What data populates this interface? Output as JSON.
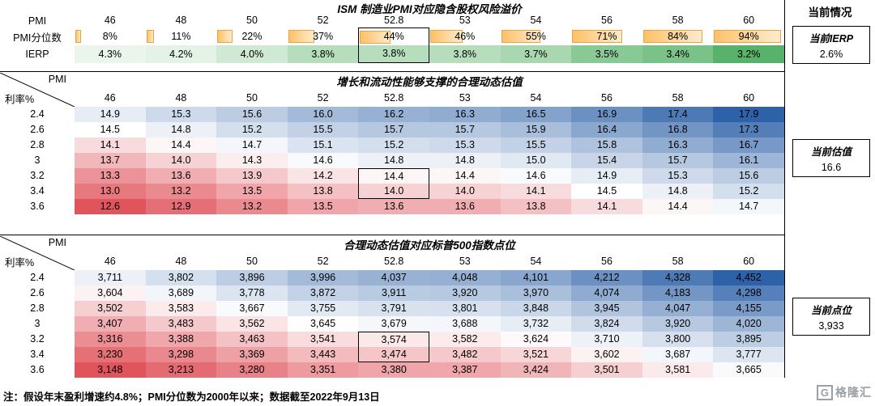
{
  "right_panel": {
    "header": "当前情况",
    "boxes": [
      {
        "label": "当前IERP",
        "value": "2.6%"
      },
      {
        "label": "当前估值",
        "value": "16.6"
      },
      {
        "label": "当前点位",
        "value": "3,933"
      }
    ]
  },
  "chart_data": [
    {
      "type": "table",
      "title": "ISM 制造业PMI对应隐含股权风险溢价",
      "columns_label": "PMI",
      "columns": [
        46,
        48,
        50,
        52,
        52.8,
        53,
        54,
        56,
        58,
        60
      ],
      "rows": [
        {
          "label": "PMI分位数",
          "unit": "%",
          "values": [
            8,
            11,
            22,
            37,
            44,
            46,
            55,
            71,
            84,
            94
          ]
        },
        {
          "label": "IERP",
          "unit": "%",
          "values": [
            4.3,
            4.2,
            4.0,
            3.8,
            3.8,
            3.8,
            3.7,
            3.5,
            3.4,
            3.2
          ]
        }
      ],
      "highlight_column": 52.8,
      "bar_border_color": "#eda33c",
      "bar_fill_color": "#fdc169",
      "green_scale": {
        "min": 3.2,
        "max": 4.3,
        "dark": "#58b269",
        "light": "#eaf6ec"
      }
    },
    {
      "type": "heatmap",
      "title": "增长和流动性能够支撑的合理动态估值",
      "x_label": "PMI",
      "y_label": "利率%",
      "columns": [
        46,
        48,
        50,
        52,
        52.8,
        53,
        54,
        56,
        58,
        60
      ],
      "row_labels": [
        "2.4",
        "2.6",
        "2.8",
        "3",
        "3.2",
        "3.4",
        "3.6"
      ],
      "values": [
        [
          14.9,
          15.3,
          15.6,
          16.0,
          16.2,
          16.3,
          16.5,
          16.9,
          17.4,
          17.9
        ],
        [
          14.5,
          14.8,
          15.2,
          15.5,
          15.7,
          15.7,
          15.9,
          16.4,
          16.8,
          17.3
        ],
        [
          14.1,
          14.4,
          14.7,
          15.1,
          15.2,
          15.3,
          15.5,
          15.8,
          16.3,
          16.7
        ],
        [
          13.7,
          14.0,
          14.3,
          14.6,
          14.8,
          14.8,
          15.0,
          15.4,
          15.7,
          16.1
        ],
        [
          13.3,
          13.6,
          13.9,
          14.2,
          14.4,
          14.4,
          14.6,
          14.9,
          15.3,
          15.6
        ],
        [
          13.0,
          13.2,
          13.5,
          13.8,
          14.0,
          14.0,
          14.1,
          14.5,
          14.8,
          15.2
        ],
        [
          12.6,
          12.9,
          13.2,
          13.5,
          13.6,
          13.6,
          13.8,
          14.1,
          14.4,
          14.7
        ]
      ],
      "decimals": 1,
      "thousands": false,
      "color_scale": {
        "min": 12.6,
        "mid": 14.5,
        "max": 17.9,
        "min_color": "#e0545c",
        "mid_color": "#ffffff",
        "max_color": "#2e62a8"
      },
      "highlight": {
        "column": 52.8,
        "rows": [
          "3.2",
          "3.4"
        ]
      }
    },
    {
      "type": "heatmap",
      "title": "合理动态估值对应标普500指数点位",
      "x_label": "PMI",
      "y_label": "利率%",
      "columns": [
        46,
        48,
        50,
        52,
        52.8,
        53,
        54,
        56,
        58,
        60
      ],
      "row_labels": [
        "2.4",
        "2.6",
        "2.8",
        "3",
        "3.2",
        "3.4",
        "3.6"
      ],
      "values": [
        [
          3711,
          3802,
          3896,
          3996,
          4037,
          4048,
          4101,
          4212,
          4328,
          4452
        ],
        [
          3604,
          3689,
          3778,
          3872,
          3911,
          3920,
          3970,
          4074,
          4183,
          4298
        ],
        [
          3502,
          3583,
          3667,
          3755,
          3791,
          3801,
          3848,
          3945,
          4047,
          4155
        ],
        [
          3407,
          3483,
          3562,
          3645,
          3679,
          3688,
          3732,
          3824,
          3920,
          4020
        ],
        [
          3316,
          3388,
          3463,
          3541,
          3574,
          3582,
          3624,
          3710,
          3800,
          3895
        ],
        [
          3230,
          3298,
          3369,
          3443,
          3474,
          3482,
          3521,
          3602,
          3687,
          3777
        ],
        [
          3148,
          3213,
          3280,
          3351,
          3380,
          3387,
          3424,
          3501,
          3581,
          3665
        ]
      ],
      "decimals": 0,
      "thousands": true,
      "color_scale": {
        "min": 3148,
        "mid": 3640,
        "max": 4452,
        "min_color": "#e0545c",
        "mid_color": "#ffffff",
        "max_color": "#2e62a8"
      },
      "highlight": {
        "column": 52.8,
        "rows": [
          "3.2",
          "3.4"
        ]
      }
    }
  ],
  "footer": {
    "note": "注：假设年末盈利增速约4.8%；PMI分位数为2000年以来；数据截至2022年9月13日",
    "logo_mark": "G",
    "logo_text": "格隆汇"
  }
}
